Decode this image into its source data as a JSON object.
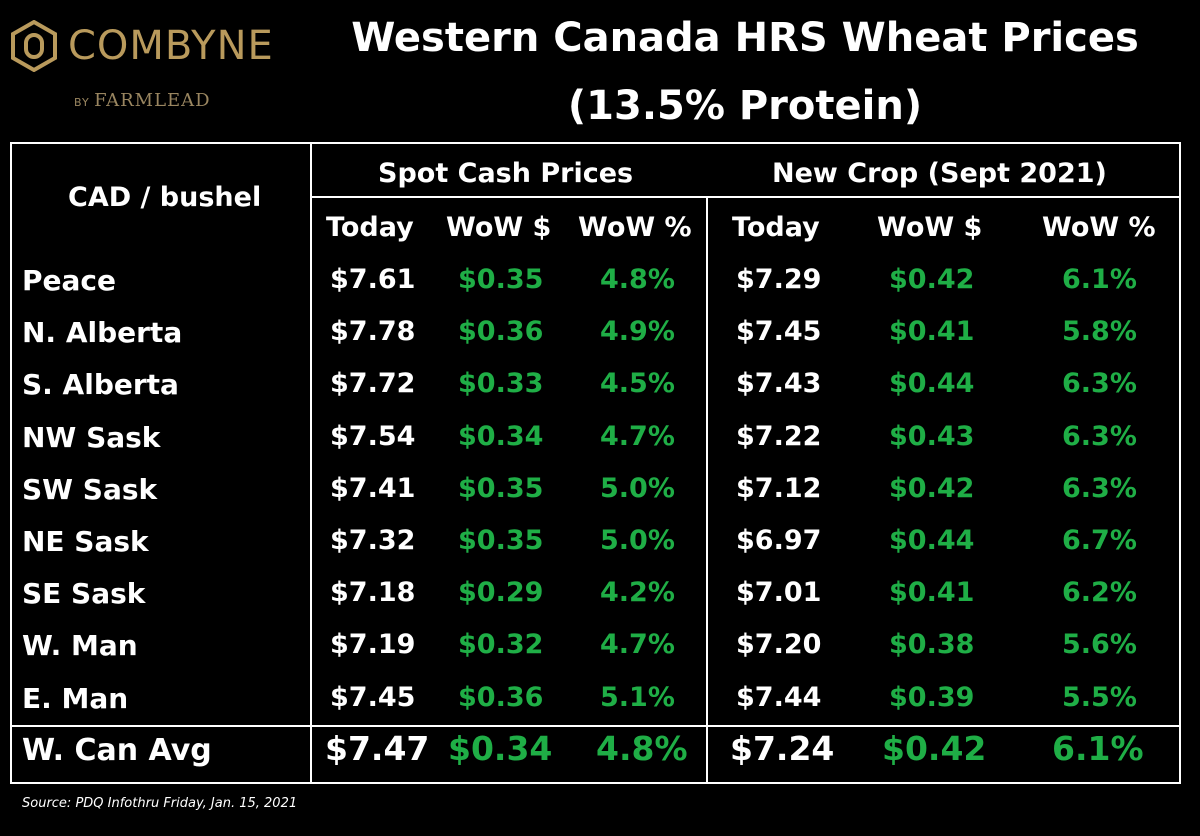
{
  "logo": {
    "brand": "COMBYNE",
    "by": "BY",
    "sub": "FARMLEAD",
    "color": "#b99a5c"
  },
  "title": {
    "line1": "Western Canada HRS Wheat Prices",
    "line2": "(13.5% Protein)"
  },
  "table": {
    "unit_header": "CAD / bushel",
    "group_spot": "Spot Cash Prices",
    "group_new": "New Crop (Sept 2021)",
    "col_today": "Today",
    "col_wow_dollar": "WoW $",
    "col_wow_pct": "WoW %",
    "green_color": "#1fae46",
    "rows": [
      {
        "region": "Peace",
        "spot_today": "$7.61",
        "spot_wow": "$0.35",
        "spot_pct": "4.8%",
        "new_today": "$7.29",
        "new_wow": "$0.42",
        "new_pct": "6.1%"
      },
      {
        "region": "N. Alberta",
        "spot_today": "$7.78",
        "spot_wow": "$0.36",
        "spot_pct": "4.9%",
        "new_today": "$7.45",
        "new_wow": "$0.41",
        "new_pct": "5.8%"
      },
      {
        "region": "S. Alberta",
        "spot_today": "$7.72",
        "spot_wow": "$0.33",
        "spot_pct": "4.5%",
        "new_today": "$7.43",
        "new_wow": "$0.44",
        "new_pct": "6.3%"
      },
      {
        "region": "NW Sask",
        "spot_today": "$7.54",
        "spot_wow": "$0.34",
        "spot_pct": "4.7%",
        "new_today": "$7.22",
        "new_wow": "$0.43",
        "new_pct": "6.3%"
      },
      {
        "region": "SW Sask",
        "spot_today": "$7.41",
        "spot_wow": "$0.35",
        "spot_pct": "5.0%",
        "new_today": "$7.12",
        "new_wow": "$0.42",
        "new_pct": "6.3%"
      },
      {
        "region": "NE Sask",
        "spot_today": "$7.32",
        "spot_wow": "$0.35",
        "spot_pct": "5.0%",
        "new_today": "$6.97",
        "new_wow": "$0.44",
        "new_pct": "6.7%"
      },
      {
        "region": "SE Sask",
        "spot_today": "$7.18",
        "spot_wow": "$0.29",
        "spot_pct": "4.2%",
        "new_today": "$7.01",
        "new_wow": "$0.41",
        "new_pct": "6.2%"
      },
      {
        "region": "W. Man",
        "spot_today": "$7.19",
        "spot_wow": "$0.32",
        "spot_pct": "4.7%",
        "new_today": "$7.20",
        "new_wow": "$0.38",
        "new_pct": "5.6%"
      },
      {
        "region": "E. Man",
        "spot_today": "$7.45",
        "spot_wow": "$0.36",
        "spot_pct": "5.1%",
        "new_today": "$7.44",
        "new_wow": "$0.39",
        "new_pct": "5.5%"
      }
    ],
    "average": {
      "region": "W. Can Avg",
      "spot_today": "$7.47",
      "spot_wow": "$0.34",
      "spot_pct": "4.8%",
      "new_today": "$7.24",
      "new_wow": "$0.42",
      "new_pct": "6.1%"
    }
  },
  "source": "Source: PDQ Infothru Friday, Jan. 15, 2021"
}
